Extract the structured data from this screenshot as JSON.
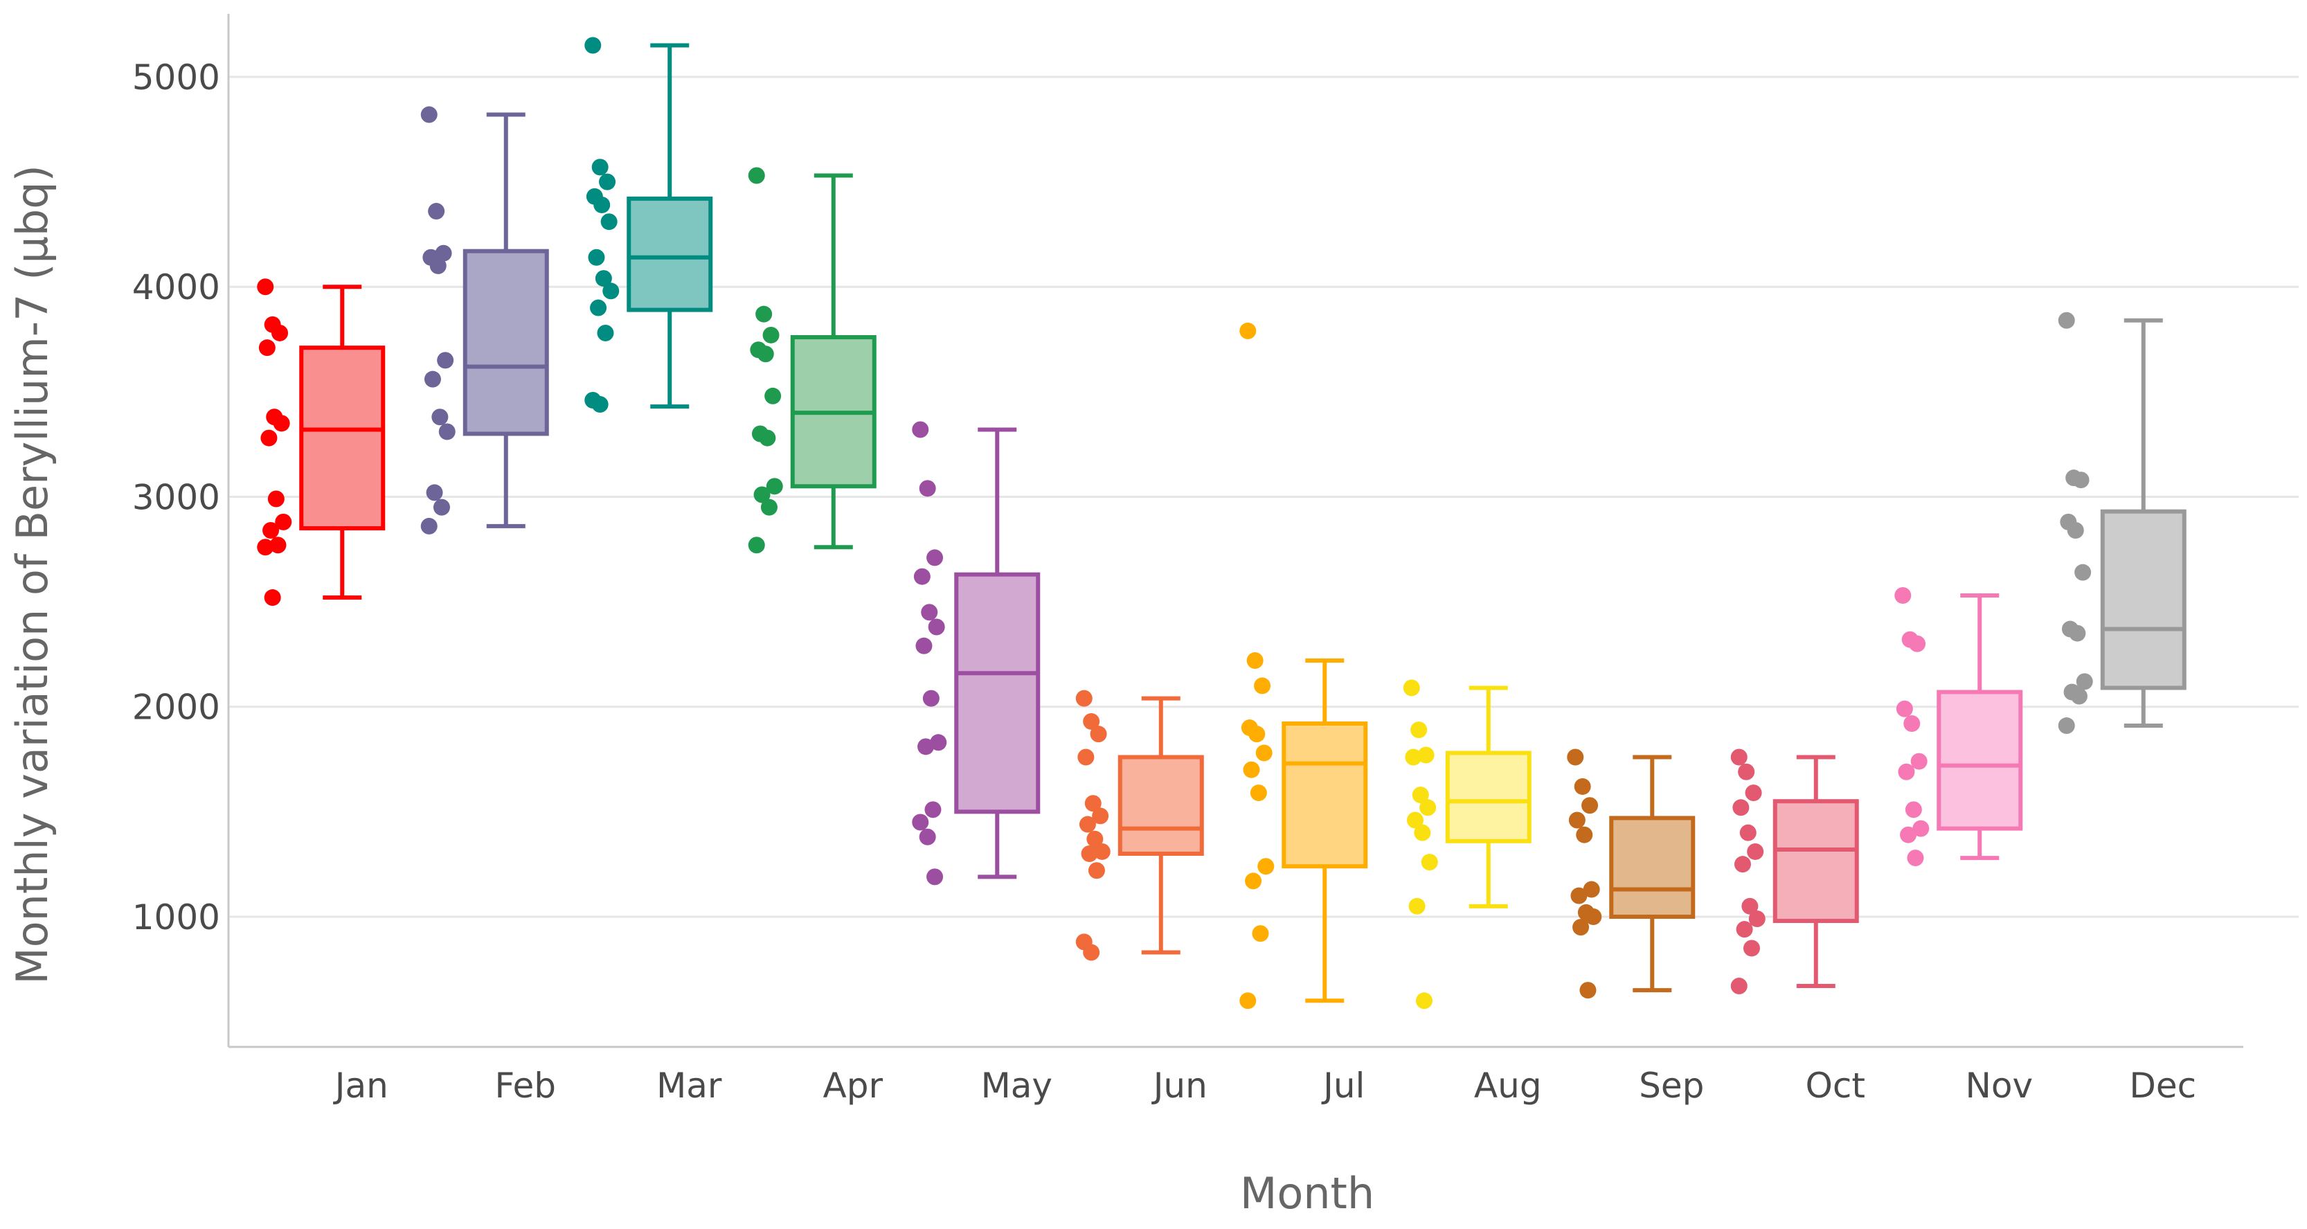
{
  "chart_data": {
    "type": "box",
    "title": "",
    "xlabel": "Month",
    "ylabel": "Monthly variation of Beryllium-7 (µbq)",
    "ylim": [
      380,
      5300
    ],
    "yticks": [
      1000,
      2000,
      3000,
      4000,
      5000
    ],
    "ytick_labels": [
      "1000",
      "2000",
      "3000",
      "4000",
      "5000"
    ],
    "grid": true,
    "legend": "none",
    "series": [
      {
        "name": "Jan",
        "color": "#ff0000",
        "fill": "#f98f8f",
        "min": 2520,
        "q1": 2850,
        "median": 3320,
        "q3": 3710,
        "max": 4000,
        "points": [
          4000,
          3820,
          3780,
          3710,
          3380,
          3350,
          3280,
          2990,
          2880,
          2840,
          2770,
          2760,
          2520
        ]
      },
      {
        "name": "Feb",
        "color": "#6d6497",
        "fill": "#aaa6c5",
        "min": 2860,
        "q1": 3300,
        "median": 3620,
        "q3": 4170,
        "max": 4820,
        "points": [
          4820,
          4360,
          4160,
          4140,
          4100,
          3650,
          3560,
          3380,
          3310,
          3020,
          2950,
          2860
        ]
      },
      {
        "name": "Mar",
        "color": "#008c80",
        "fill": "#80c6c0",
        "min": 3430,
        "q1": 3890,
        "median": 4140,
        "q3": 4420,
        "max": 5150,
        "points": [
          5150,
          4570,
          4500,
          4430,
          4390,
          4310,
          4140,
          4040,
          3980,
          3900,
          3780,
          3460,
          3440
        ]
      },
      {
        "name": "Apr",
        "color": "#1f9b4f",
        "fill": "#9ccfaa",
        "min": 2760,
        "q1": 3050,
        "median": 3400,
        "q3": 3760,
        "max": 4530,
        "points": [
          4530,
          3870,
          3770,
          3700,
          3680,
          3480,
          3300,
          3280,
          3050,
          3010,
          2950,
          2770
        ]
      },
      {
        "name": "May",
        "color": "#9c4fa0",
        "fill": "#d2a9d0",
        "min": 1190,
        "q1": 1500,
        "median": 2160,
        "q3": 2630,
        "max": 3320,
        "points": [
          3320,
          3040,
          2710,
          2620,
          2450,
          2380,
          2290,
          2040,
          1830,
          1810,
          1510,
          1450,
          1380,
          1190
        ]
      },
      {
        "name": "Jun",
        "color": "#f16b3a",
        "fill": "#f9b39c",
        "min": 830,
        "q1": 1300,
        "median": 1420,
        "q3": 1760,
        "max": 2040,
        "points": [
          2040,
          1930,
          1870,
          1760,
          1540,
          1480,
          1440,
          1370,
          1310,
          1300,
          1220,
          880,
          830
        ]
      },
      {
        "name": "Jul",
        "color": "#ffad00",
        "fill": "#ffd581",
        "min": 600,
        "q1": 1240,
        "median": 1730,
        "q3": 1920,
        "max": 2220,
        "points": [
          3790,
          2220,
          2100,
          1900,
          1870,
          1780,
          1700,
          1590,
          1240,
          1170,
          920,
          600
        ]
      },
      {
        "name": "Aug",
        "color": "#fae010",
        "fill": "#fdf3a0",
        "min": 1050,
        "q1": 1360,
        "median": 1550,
        "q3": 1780,
        "max": 2090,
        "points": [
          2090,
          1890,
          1770,
          1760,
          1580,
          1520,
          1460,
          1400,
          1260,
          1050,
          600
        ]
      },
      {
        "name": "Sep",
        "color": "#c46a1c",
        "fill": "#e3b78c",
        "min": 650,
        "q1": 1000,
        "median": 1130,
        "q3": 1470,
        "max": 1760,
        "points": [
          1760,
          1620,
          1530,
          1460,
          1390,
          1130,
          1100,
          1020,
          1000,
          950,
          650
        ]
      },
      {
        "name": "Oct",
        "color": "#e25970",
        "fill": "#f5afb9",
        "min": 670,
        "q1": 980,
        "median": 1320,
        "q3": 1550,
        "max": 1760,
        "points": [
          1760,
          1690,
          1590,
          1520,
          1400,
          1310,
          1250,
          1050,
          990,
          940,
          850,
          670
        ]
      },
      {
        "name": "Nov",
        "color": "#f679b6",
        "fill": "#fbc1de",
        "min": 1280,
        "q1": 1420,
        "median": 1720,
        "q3": 2070,
        "max": 2530,
        "points": [
          2530,
          2320,
          2300,
          1990,
          1920,
          1740,
          1690,
          1510,
          1420,
          1390,
          1280
        ]
      },
      {
        "name": "Dec",
        "color": "#999999",
        "fill": "#cccccc",
        "min": 1910,
        "q1": 2090,
        "median": 2370,
        "q3": 2930,
        "max": 3840,
        "points": [
          3840,
          3090,
          3080,
          2880,
          2840,
          2640,
          2370,
          2350,
          2120,
          2070,
          2050,
          1910
        ]
      }
    ]
  }
}
